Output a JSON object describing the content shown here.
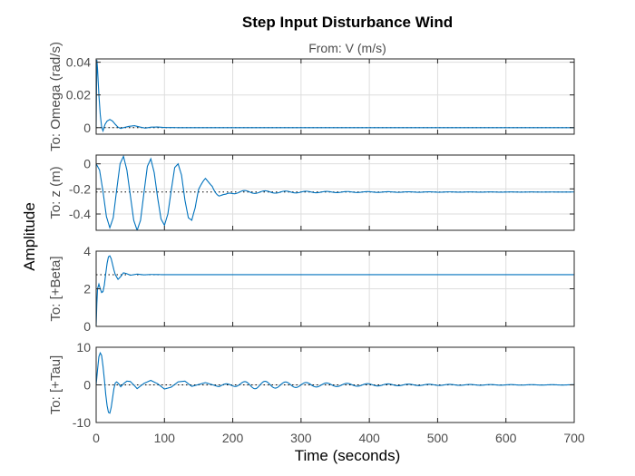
{
  "chart_data": {
    "type": "line",
    "title": "Step Input Disturbance Wind",
    "subtitle": "From: V (m/s)",
    "xlabel": "Time (seconds)",
    "ylabel": "Amplitude",
    "xlim": [
      0,
      700
    ],
    "xticks": [
      0,
      100,
      200,
      300,
      400,
      500,
      600,
      700
    ],
    "grid": true,
    "colors": {
      "response": "#0072bd",
      "steady_state": "#000000",
      "grid": "#dedede",
      "axes": "#262626"
    },
    "subplots": [
      {
        "ylabel": "To: Omega (rad/s)",
        "ylim": [
          -0.004,
          0.042
        ],
        "yticks": [
          0,
          0.02,
          0.04
        ],
        "steady_state": 0,
        "x": [
          0,
          1,
          2,
          4,
          6,
          8,
          10,
          13,
          16,
          20,
          24,
          28,
          32,
          36,
          40,
          48,
          56,
          64,
          72,
          80,
          90,
          100,
          120,
          150,
          200,
          300,
          400,
          500,
          600,
          700
        ],
        "y": [
          0,
          0.042,
          0.036,
          0.02,
          0.008,
          0.0005,
          -0.002,
          0.002,
          0.004,
          0.005,
          0.004,
          0.002,
          0.0003,
          -0.0005,
          0,
          0.0008,
          0.0012,
          0.0004,
          -0.0003,
          0.0003,
          0.0004,
          0.0001,
          0,
          0,
          0,
          0,
          0,
          0,
          0,
          0
        ]
      },
      {
        "ylabel": "To: z (m)",
        "ylim": [
          -0.53,
          0.07
        ],
        "yticks": [
          0,
          -0.2,
          -0.4
        ],
        "steady_state": -0.225,
        "oscillation": {
          "period": 30,
          "decay": 0.0072,
          "amp_start": 0.021,
          "amp_growth_time": 40
        },
        "x": [
          0,
          5,
          10,
          15,
          20,
          25,
          30,
          35,
          40,
          45,
          50,
          55,
          60,
          65,
          70,
          75,
          80,
          85,
          90,
          95,
          100,
          105,
          110,
          115,
          120,
          125,
          130,
          135,
          140,
          145,
          150,
          160,
          170,
          180,
          190,
          200,
          220,
          240,
          260,
          280,
          300,
          350,
          400,
          450,
          500,
          550,
          600,
          650,
          700
        ],
        "y": [
          0,
          -0.05,
          -0.22,
          -0.42,
          -0.51,
          -0.43,
          -0.21,
          0.0,
          0.06,
          -0.05,
          -0.25,
          -0.45,
          -0.53,
          -0.45,
          -0.23,
          -0.02,
          0.04,
          -0.07,
          -0.27,
          -0.44,
          -0.49,
          -0.4,
          -0.21,
          -0.03,
          0.0,
          -0.09,
          -0.29,
          -0.43,
          -0.45,
          -0.36,
          -0.2,
          -0.07,
          -0.12,
          -0.32,
          -0.39,
          -0.28,
          -0.13,
          -0.33,
          -0.26,
          -0.17,
          -0.27,
          -0.22,
          -0.232,
          -0.218,
          -0.228,
          -0.223,
          -0.226,
          -0.224,
          -0.225
        ]
      },
      {
        "ylabel": "To: [+Beta]",
        "ylim": [
          0,
          4
        ],
        "yticks": [
          0,
          2,
          4
        ],
        "steady_state": 2.75,
        "x": [
          0,
          1,
          2,
          4,
          6,
          8,
          10,
          12,
          14,
          16,
          18,
          20,
          22,
          24,
          26,
          28,
          32,
          36,
          40,
          45,
          50,
          60,
          70,
          80,
          100,
          150,
          200,
          300,
          400,
          500,
          600,
          700
        ],
        "y": [
          0,
          1.2,
          2.0,
          2.25,
          2.0,
          1.8,
          1.85,
          2.2,
          2.8,
          3.35,
          3.7,
          3.75,
          3.6,
          3.3,
          3.0,
          2.75,
          2.5,
          2.65,
          2.85,
          2.8,
          2.72,
          2.78,
          2.74,
          2.76,
          2.75,
          2.75,
          2.75,
          2.75,
          2.75,
          2.75,
          2.75,
          2.75
        ]
      },
      {
        "ylabel": "To: [+Tau]",
        "ylim": [
          -10,
          10
        ],
        "yticks": [
          10,
          0,
          -10
        ],
        "steady_state": 0,
        "oscillation": {
          "period": 30,
          "decay": 0.0072,
          "amp_start": 1.6,
          "amp_growth_time": 50
        },
        "x": [
          0,
          2,
          4,
          6,
          8,
          10,
          12,
          14,
          16,
          18,
          20,
          22,
          24,
          26,
          28,
          30,
          33,
          36,
          40,
          45,
          50,
          55,
          60,
          70,
          80,
          90,
          100,
          110,
          120,
          130,
          140,
          160,
          180,
          200,
          240,
          280,
          320,
          400,
          500,
          600,
          700
        ],
        "y": [
          0,
          4.0,
          7.5,
          8.5,
          7.8,
          5.0,
          1.5,
          -2.5,
          -5.5,
          -7.3,
          -7.5,
          -6.0,
          -3.5,
          -1.0,
          0.5,
          0.8,
          0.3,
          -0.5,
          0.3,
          1.0,
          0.9,
          0.0,
          -1.0,
          0.4,
          1.2,
          0.3,
          -1.1,
          -0.6,
          0.8,
          1.0,
          -0.4,
          0.6,
          -0.5,
          0.4,
          -0.3,
          0.3,
          -0.2,
          0.1,
          -0.05,
          0.02,
          0
        ]
      }
    ]
  }
}
